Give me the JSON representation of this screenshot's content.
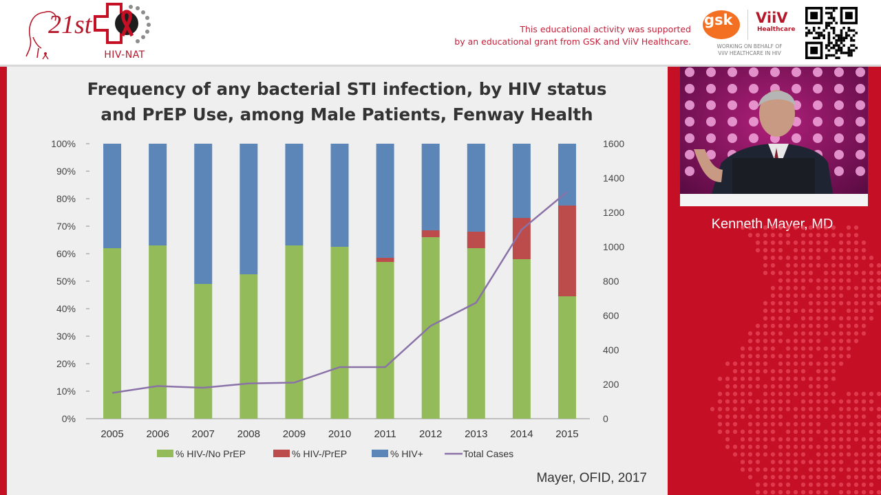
{
  "header": {
    "logo_text": "21st",
    "hivnat_label": "HIV-NAT",
    "support_line1": "This educational activity was supported",
    "support_line2": "by an educational grant from GSK and ViiV Healthcare.",
    "gsk_label": "gsk",
    "viiv_label": "ViiV",
    "viiv_sub": "Healthcare",
    "working_line1": "WORKING ON BEHALF OF",
    "working_line2": "ViiV HEALTHCARE IN HIV"
  },
  "speaker": {
    "name": "Kenneth Mayer, MD"
  },
  "slide": {
    "source": "Mayer, OFID, 2017"
  },
  "colors": {
    "background": "#c40f24",
    "no_prep": "#93bb59",
    "prep": "#bc4c4c",
    "hiv_pos": "#5b86b7",
    "total": "#8a72a8"
  },
  "chart_data": {
    "type": "bar",
    "title_line1": "Frequency of any bacterial STI infection, by HIV status",
    "title_line2": "and PrEP Use, among Male Patients, Fenway Health",
    "categories": [
      "2005",
      "2006",
      "2007",
      "2008",
      "2009",
      "2010",
      "2011",
      "2012",
      "2013",
      "2014",
      "2015"
    ],
    "series": [
      {
        "name": "% HIV-/No PrEP",
        "stack": "pct",
        "values": [
          62,
          63,
          49,
          52.5,
          63,
          62.5,
          57,
          66,
          62,
          58,
          44.5
        ]
      },
      {
        "name": "% HIV-/PrEP",
        "stack": "pct",
        "values": [
          0,
          0,
          0,
          0,
          0,
          0,
          1.5,
          2.5,
          6,
          15,
          33
        ]
      },
      {
        "name": "% HIV+",
        "stack": "pct",
        "values": [
          38,
          37,
          51,
          47.5,
          37,
          37.5,
          41.5,
          31.5,
          32,
          27,
          22.5
        ]
      },
      {
        "name": "Total Cases",
        "type": "line",
        "axis": "right",
        "values": [
          150,
          190,
          180,
          205,
          210,
          300,
          300,
          540,
          675,
          1100,
          1320
        ]
      }
    ],
    "ylim_left": [
      0,
      100
    ],
    "yticks_left": [
      "0%",
      "10%",
      "20%",
      "30%",
      "40%",
      "50%",
      "60%",
      "70%",
      "80%",
      "90%",
      "100%"
    ],
    "ylim_right": [
      0,
      1600
    ],
    "yticks_right": [
      "0",
      "200",
      "400",
      "600",
      "800",
      "1000",
      "1200",
      "1400",
      "1600"
    ],
    "legend_position": "bottom",
    "grid": false
  }
}
